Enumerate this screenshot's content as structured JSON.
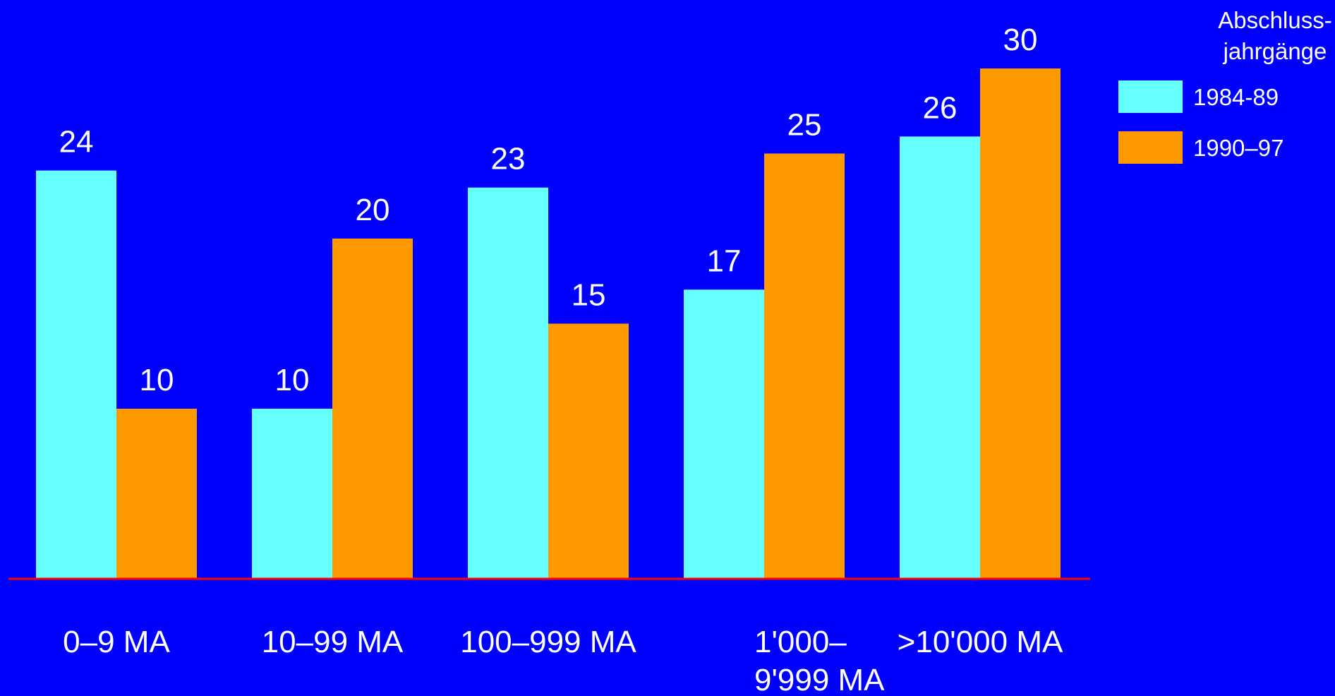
{
  "chart_data": {
    "type": "bar",
    "title": "",
    "xlabel": "",
    "ylabel": "",
    "ylim": [
      0,
      30
    ],
    "grid": false,
    "legend_position": "top-right",
    "legend_title_lines": [
      "Abschluss-",
      "jahrgänge"
    ],
    "categories": [
      [
        "0–9 MA"
      ],
      [
        "10–99 MA"
      ],
      [
        "100–999 MA"
      ],
      [
        "1'000–",
        "9'999 MA"
      ],
      [
        ">10'000 MA"
      ]
    ],
    "series": [
      {
        "name": "1984-89",
        "color": "#66ffff",
        "values": [
          24,
          10,
          23,
          17,
          26
        ]
      },
      {
        "name": "1990–97",
        "color": "#ff9900",
        "values": [
          10,
          20,
          15,
          25,
          30
        ]
      }
    ],
    "baseline_color": "#ff0000",
    "background_color": "#0000ff"
  }
}
